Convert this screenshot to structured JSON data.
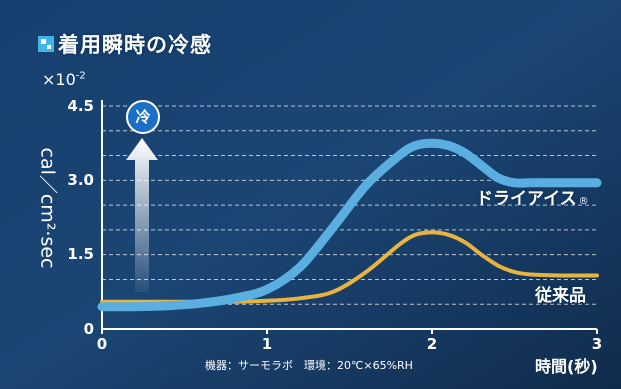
{
  "header": {
    "title": "着用瞬時の冷感",
    "icon": "square-mosaic-icon"
  },
  "chart_data": {
    "type": "line",
    "title": "着用瞬時の冷感",
    "ylabel": "cal／cm²·sec",
    "y_multiplier": {
      "base": "×10",
      "exponent": "-2"
    },
    "xlabel": "時間(秒)",
    "x_ticks": [
      "0",
      "1",
      "2",
      "3"
    ],
    "y_ticks": [
      "0",
      "1.5",
      "3.0",
      "4.5"
    ],
    "xlim": [
      0,
      3
    ],
    "ylim": [
      0,
      4.5
    ],
    "grid": "horizontal dashed",
    "series": [
      {
        "name": "ドライアイス",
        "registered_mark": "®",
        "color": "#5aaee0",
        "x": [
          0,
          0.2,
          0.4,
          0.6,
          0.8,
          1.0,
          1.2,
          1.4,
          1.6,
          1.8,
          1.9,
          2.0,
          2.1,
          2.2,
          2.3,
          2.4,
          2.5,
          2.6,
          2.8,
          3.0
        ],
        "y": [
          0.45,
          0.45,
          0.47,
          0.52,
          0.62,
          0.8,
          1.25,
          2.05,
          2.9,
          3.5,
          3.7,
          3.75,
          3.7,
          3.55,
          3.3,
          3.05,
          2.95,
          2.95,
          2.95,
          2.95
        ]
      },
      {
        "name": "従来品",
        "color": "#e8b441",
        "x": [
          0,
          0.2,
          0.4,
          0.6,
          0.8,
          1.0,
          1.2,
          1.4,
          1.6,
          1.8,
          1.9,
          2.0,
          2.1,
          2.2,
          2.3,
          2.4,
          2.5,
          2.6,
          2.8,
          3.0
        ],
        "y": [
          0.55,
          0.55,
          0.55,
          0.55,
          0.55,
          0.57,
          0.62,
          0.75,
          1.15,
          1.7,
          1.9,
          1.95,
          1.9,
          1.75,
          1.5,
          1.28,
          1.15,
          1.1,
          1.08,
          1.08
        ]
      }
    ],
    "annotation": "冷",
    "footnote": "機器：サーモラボ　環境：20℃×65%RH"
  }
}
